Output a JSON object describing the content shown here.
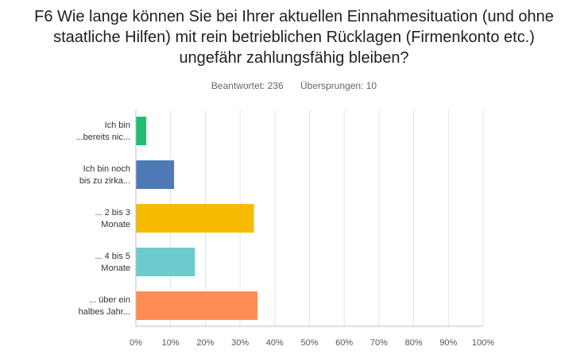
{
  "question": {
    "lines": [
      "F6 Wie lange können Sie bei Ihrer aktuellen Einnahmesituation (und ohne",
      "staatliche Hilfen) mit rein betrieblichen Rücklagen (Firmenkonto etc.)",
      "ungefähr zahlungsfähig bleiben?"
    ]
  },
  "stats": {
    "answered": "Beantwortet: 236",
    "skipped": "Übersprungen: 10"
  },
  "chart_data": {
    "type": "bar",
    "orientation": "horizontal",
    "categories": [
      [
        "Ich bin",
        "...bereits nic..."
      ],
      [
        "Ich bin noch",
        "bis zu zirka..."
      ],
      [
        "... 2 bis 3",
        "Monate"
      ],
      [
        "... 4 bis 5",
        "Monate"
      ],
      [
        "... über ein",
        "halbes Jahr..."
      ]
    ],
    "values": [
      3,
      11,
      34,
      17,
      35
    ],
    "colors": [
      "#1fbf70",
      "#4e79b7",
      "#f7bc00",
      "#6ccbcd",
      "#ff8c52"
    ],
    "xlim": [
      0,
      100
    ],
    "xticks": [
      "0%",
      "10%",
      "20%",
      "30%",
      "40%",
      "50%",
      "60%",
      "70%",
      "80%",
      "90%",
      "100%"
    ],
    "grid": true
  }
}
